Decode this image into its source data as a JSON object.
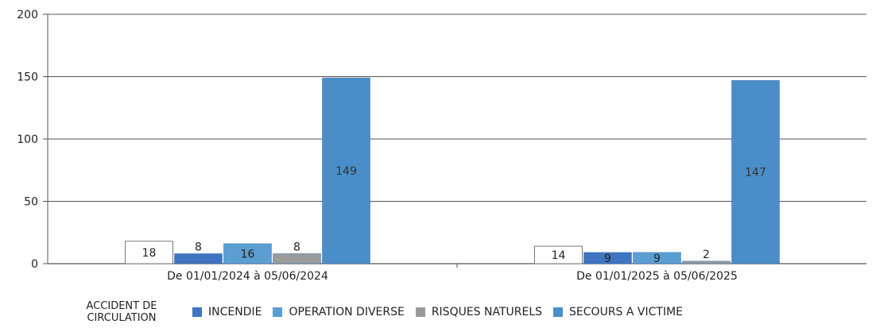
{
  "chart_data": {
    "type": "bar",
    "categories": [
      "De 01/01/2024 à 05/06/2024",
      "De 01/01/2025 à 05/06/2025"
    ],
    "series": [
      {
        "name": "ACCIDENT DE CIRCULATION",
        "color": "#ffffff",
        "values": [
          18,
          14
        ]
      },
      {
        "name": "INCENDIE",
        "color": "#3f74c0",
        "values": [
          8,
          9
        ]
      },
      {
        "name": "OPERATION DIVERSE",
        "color": "#5b9ed2",
        "values": [
          16,
          9
        ]
      },
      {
        "name": "RISQUES NATURELS",
        "color": "#9a9a9a",
        "values": [
          8,
          2
        ]
      },
      {
        "name": "SECOURS A VICTIME",
        "color": "#4a8ec9",
        "values": [
          149,
          147
        ]
      }
    ],
    "ylim": [
      0,
      200
    ],
    "yticks": [
      "0",
      "50",
      "100",
      "150",
      "200"
    ],
    "grid": true,
    "legend_position": "bottom"
  }
}
